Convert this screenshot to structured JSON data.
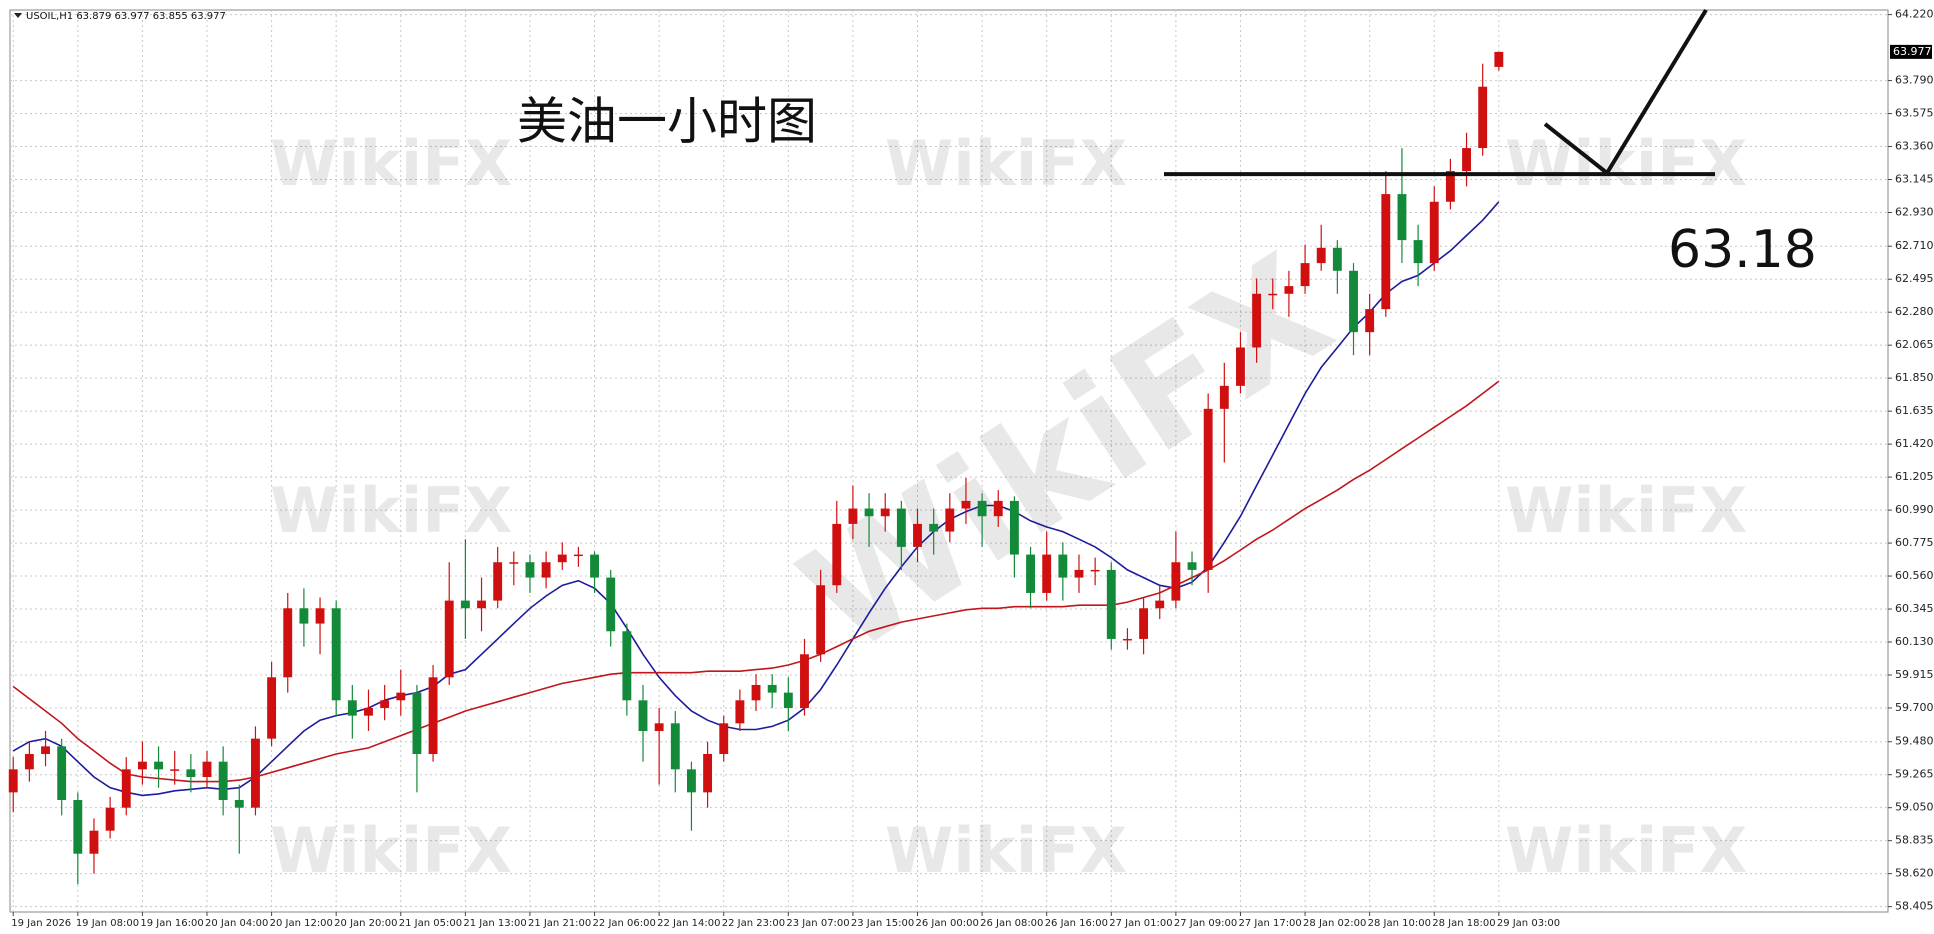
{
  "chart_data": {
    "type": "candlestick",
    "title": "USOIL,H1",
    "annotation": "美油一小时图",
    "watermark": "WikiFX",
    "level": 63.18,
    "up_color": "#d01010",
    "down_color": "#138a3a",
    "grid": true,
    "ylim": [
      58.37,
      64.25
    ],
    "yticks": [
      {
        "value": 64.22,
        "label": "64.220"
      },
      {
        "value": 63.79,
        "label": "63.790"
      },
      63.575,
      {
        "value": 63.36,
        "label": "63.360"
      },
      63.145,
      {
        "value": 62.93,
        "label": "62.930"
      },
      {
        "value": 62.71,
        "label": "62.710"
      },
      62.495,
      {
        "value": 62.28,
        "label": "62.280"
      },
      62.065,
      {
        "value": 61.85,
        "label": "61.850"
      },
      61.635,
      {
        "value": 61.42,
        "label": "61.420"
      },
      61.205,
      {
        "value": 60.99,
        "label": "60.990"
      },
      60.775,
      {
        "value": 60.56,
        "label": "60.560"
      },
      60.345,
      {
        "value": 60.13,
        "label": "60.130"
      },
      59.915,
      {
        "value": 59.7,
        "label": "59.700"
      },
      {
        "value": 59.48,
        "label": "59.480"
      },
      59.265,
      {
        "value": 59.05,
        "label": "59.050"
      },
      58.835,
      {
        "value": 58.62,
        "label": "58.620"
      },
      58.405
    ],
    "xlim": [
      -0.2,
      116.1
    ],
    "xticks": [
      {
        "value": 0,
        "label": "19 Jan 2026"
      },
      {
        "value": 4,
        "label": "19 Jan 08:00"
      },
      {
        "value": 8,
        "label": "19 Jan 16:00"
      },
      {
        "value": 12,
        "label": "20 Jan 04:00"
      },
      {
        "value": 16,
        "label": "20 Jan 12:00"
      },
      {
        "value": 20,
        "label": "20 Jan 20:00"
      },
      {
        "value": 24,
        "label": "21 Jan 05:00"
      },
      {
        "value": 28,
        "label": "21 Jan 13:00"
      },
      {
        "value": 32,
        "label": "21 Jan 21:00"
      },
      {
        "value": 36,
        "label": "22 Jan 06:00"
      },
      {
        "value": 40,
        "label": "22 Jan 14:00"
      },
      {
        "value": 44,
        "label": "22 Jan 23:00"
      },
      {
        "value": 48,
        "label": "23 Jan 07:00"
      },
      {
        "value": 52,
        "label": "23 Jan 15:00"
      },
      {
        "value": 56,
        "label": "26 Jan 00:00"
      },
      {
        "value": 60,
        "label": "26 Jan 08:00"
      },
      {
        "value": 64,
        "label": "26 Jan 16:00"
      },
      {
        "value": 68,
        "label": "27 Jan 01:00"
      },
      {
        "value": 72,
        "label": "27 Jan 09:00"
      },
      {
        "value": 76,
        "label": "27 Jan 17:00"
      },
      {
        "value": 80,
        "label": "28 Jan 02:00"
      },
      {
        "value": 84,
        "label": "28 Jan 10:00"
      },
      {
        "value": 88,
        "label": "28 Jan 18:00"
      },
      {
        "value": 92,
        "label": "29 Jan 03:00"
      }
    ],
    "open": [
      59.15,
      59.3,
      59.4,
      59.45,
      59.1,
      58.75,
      58.9,
      59.05,
      59.3,
      59.35,
      59.3,
      59.3,
      59.25,
      59.35,
      59.1,
      59.05,
      59.5,
      59.9,
      60.35,
      60.25,
      60.35,
      59.75,
      59.65,
      59.7,
      59.75,
      59.8,
      59.4,
      59.9,
      60.4,
      60.35,
      60.4,
      60.65,
      60.65,
      60.55,
      60.65,
      60.7,
      60.7,
      60.55,
      60.2,
      59.75,
      59.55,
      59.6,
      59.3,
      59.15,
      59.4,
      59.6,
      59.75,
      59.85,
      59.8,
      59.7,
      60.05,
      60.5,
      60.9,
      61.0,
      60.95,
      61.0,
      60.75,
      60.9,
      60.85,
      61.0,
      61.05,
      60.95,
      61.05,
      60.7,
      60.45,
      60.7,
      60.55,
      60.6,
      60.6,
      60.15,
      60.15,
      60.35,
      60.4,
      60.65,
      60.6,
      61.65,
      61.8,
      62.05,
      62.4,
      62.4,
      62.45,
      62.6,
      62.7,
      62.55,
      62.15,
      62.3,
      63.05,
      62.75,
      62.6,
      63.0,
      63.2,
      63.35,
      63.879
    ],
    "high": [
      59.38,
      59.48,
      59.55,
      59.5,
      59.15,
      58.98,
      59.12,
      59.38,
      59.48,
      59.45,
      59.42,
      59.4,
      59.42,
      59.45,
      59.2,
      59.58,
      60.0,
      60.45,
      60.48,
      60.42,
      60.4,
      59.85,
      59.82,
      59.85,
      59.95,
      59.85,
      59.98,
      60.65,
      60.8,
      60.55,
      60.75,
      60.72,
      60.7,
      60.72,
      60.78,
      60.75,
      60.72,
      60.6,
      60.25,
      59.85,
      59.7,
      59.68,
      59.35,
      59.48,
      59.65,
      59.82,
      59.92,
      59.92,
      59.9,
      60.15,
      60.6,
      61.05,
      61.15,
      61.1,
      61.1,
      61.05,
      61.0,
      61.0,
      61.1,
      61.2,
      61.1,
      61.12,
      61.08,
      60.75,
      60.85,
      60.78,
      60.7,
      60.68,
      60.65,
      60.22,
      60.42,
      60.5,
      60.85,
      60.72,
      61.75,
      61.95,
      62.15,
      62.5,
      62.5,
      62.55,
      62.72,
      62.85,
      62.75,
      62.6,
      62.4,
      63.2,
      63.35,
      62.85,
      63.1,
      63.28,
      63.45,
      63.9,
      63.977
    ],
    "low": [
      59.02,
      59.22,
      59.32,
      59.0,
      58.55,
      58.62,
      58.85,
      59.0,
      59.2,
      59.18,
      59.2,
      59.15,
      59.18,
      59.0,
      58.75,
      59.0,
      59.45,
      59.8,
      60.1,
      60.05,
      59.65,
      59.5,
      59.55,
      59.62,
      59.65,
      59.15,
      59.35,
      59.85,
      60.15,
      60.2,
      60.35,
      60.5,
      60.45,
      60.48,
      60.6,
      60.62,
      60.45,
      60.1,
      59.65,
      59.35,
      59.2,
      59.15,
      58.9,
      59.05,
      59.35,
      59.55,
      59.68,
      59.7,
      59.55,
      59.65,
      60.0,
      60.45,
      60.8,
      60.75,
      60.85,
      60.6,
      60.65,
      60.7,
      60.78,
      60.9,
      60.75,
      60.88,
      60.55,
      60.35,
      60.4,
      60.4,
      60.45,
      60.5,
      60.08,
      60.08,
      60.05,
      60.28,
      60.35,
      60.5,
      60.45,
      61.3,
      61.75,
      61.95,
      62.3,
      62.25,
      62.4,
      62.55,
      62.4,
      62.0,
      62.0,
      62.25,
      62.6,
      62.45,
      62.55,
      62.95,
      63.1,
      63.3,
      63.855
    ],
    "close": [
      59.3,
      59.4,
      59.45,
      59.1,
      58.75,
      58.9,
      59.05,
      59.3,
      59.35,
      59.3,
      59.3,
      59.25,
      59.35,
      59.1,
      59.05,
      59.5,
      59.9,
      60.35,
      60.25,
      60.35,
      59.75,
      59.65,
      59.7,
      59.75,
      59.8,
      59.4,
      59.9,
      60.4,
      60.35,
      60.4,
      60.65,
      60.65,
      60.55,
      60.65,
      60.7,
      60.7,
      60.55,
      60.2,
      59.75,
      59.55,
      59.6,
      59.3,
      59.15,
      59.4,
      59.6,
      59.75,
      59.85,
      59.8,
      59.7,
      60.05,
      60.5,
      60.9,
      61.0,
      60.95,
      61.0,
      60.75,
      60.9,
      60.85,
      61.0,
      61.05,
      60.95,
      61.05,
      60.7,
      60.45,
      60.7,
      60.55,
      60.6,
      60.6,
      60.15,
      60.15,
      60.35,
      60.4,
      60.65,
      60.6,
      61.65,
      61.8,
      62.05,
      62.4,
      62.4,
      62.45,
      62.6,
      62.7,
      62.55,
      62.15,
      62.3,
      63.05,
      62.75,
      62.6,
      63.0,
      63.2,
      63.35,
      63.75,
      63.977
    ],
    "moving_averages": [
      {
        "color": "#1c1c9c",
        "values": [
          59.42,
          59.48,
          59.5,
          59.45,
          59.35,
          59.25,
          59.18,
          59.15,
          59.13,
          59.14,
          59.16,
          59.17,
          59.18,
          59.17,
          59.18,
          59.25,
          59.35,
          59.45,
          59.55,
          59.62,
          59.65,
          59.67,
          59.7,
          59.75,
          59.78,
          59.8,
          59.84,
          59.92,
          59.95,
          60.05,
          60.15,
          60.25,
          60.35,
          60.43,
          60.5,
          60.53,
          60.48,
          60.38,
          60.22,
          60.05,
          59.9,
          59.78,
          59.68,
          59.62,
          59.58,
          59.56,
          59.56,
          59.58,
          59.62,
          59.7,
          59.82,
          59.98,
          60.15,
          60.32,
          60.48,
          60.62,
          60.75,
          60.85,
          60.93,
          60.98,
          61.02,
          61.02,
          60.98,
          60.92,
          60.88,
          60.85,
          60.8,
          60.75,
          60.68,
          60.6,
          60.55,
          60.5,
          60.48,
          60.52,
          60.62,
          60.78,
          60.95,
          61.15,
          61.35,
          61.55,
          61.75,
          61.92,
          62.05,
          62.18,
          62.28,
          62.4,
          62.48,
          62.52,
          62.6,
          62.68,
          62.78,
          62.88,
          63.0
        ]
      },
      {
        "color": "#c0161c",
        "values": [
          59.84,
          59.76,
          59.68,
          59.6,
          59.5,
          59.42,
          59.34,
          59.27,
          59.25,
          59.24,
          59.23,
          59.22,
          59.22,
          59.22,
          59.23,
          59.25,
          59.28,
          59.31,
          59.34,
          59.37,
          59.4,
          59.42,
          59.44,
          59.48,
          59.52,
          59.56,
          59.6,
          59.64,
          59.68,
          59.71,
          59.74,
          59.77,
          59.8,
          59.83,
          59.86,
          59.88,
          59.9,
          59.92,
          59.93,
          59.93,
          59.93,
          59.93,
          59.93,
          59.94,
          59.94,
          59.94,
          59.95,
          59.96,
          59.98,
          60.01,
          60.05,
          60.1,
          60.15,
          60.2,
          60.23,
          60.26,
          60.28,
          60.3,
          60.32,
          60.34,
          60.35,
          60.35,
          60.36,
          60.36,
          60.36,
          60.36,
          60.37,
          60.37,
          60.37,
          60.39,
          60.42,
          60.45,
          60.5,
          60.55,
          60.6,
          60.66,
          60.73,
          60.8,
          60.86,
          60.93,
          61.0,
          61.06,
          61.12,
          61.19,
          61.25,
          61.32,
          61.39,
          61.46,
          61.53,
          61.6,
          61.67,
          61.75,
          61.83
        ]
      }
    ]
  }
}
